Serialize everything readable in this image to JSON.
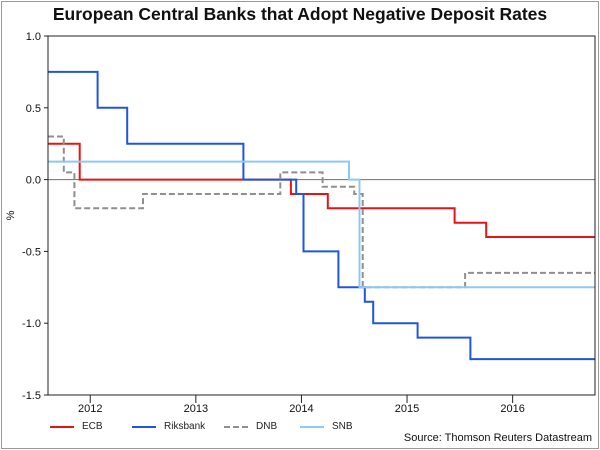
{
  "chart_data": {
    "type": "line",
    "title": "European Central Banks that Adopt Negative Deposit Rates",
    "ylabel": "%",
    "xlabel": "",
    "ylim": [
      -1.5,
      1.0
    ],
    "xlim": [
      2011.6,
      2016.78
    ],
    "yticks": [
      1.0,
      0.5,
      0.0,
      -0.5,
      -1.0,
      -1.5
    ],
    "ytick_labels": [
      "1.0",
      "0.5",
      "0.0",
      "-0.5",
      "-1.0",
      "-1.5"
    ],
    "x_year_boundaries": [
      2012,
      2013,
      2014,
      2015,
      2016
    ],
    "xtick_labels": [
      {
        "label": "2012",
        "x": 2012.0
      },
      {
        "label": "2013",
        "x": 2013.0
      },
      {
        "label": "2014",
        "x": 2014.0
      },
      {
        "label": "2015",
        "x": 2015.0
      },
      {
        "label": "2016",
        "x": 2016.0
      }
    ],
    "zero_line": true,
    "series": [
      {
        "name": "ECB",
        "color": "#e81414",
        "dash": false,
        "x": [
          2011.6,
          2011.9,
          2011.9,
          2013.9,
          2013.9,
          2014.1,
          2014.1,
          2014.25,
          2014.25,
          2015.45,
          2015.45,
          2015.75,
          2015.75,
          2016.78
        ],
        "y": [
          0.25,
          0.25,
          0.0,
          0.0,
          -0.1,
          -0.1,
          -0.1,
          -0.1,
          -0.2,
          -0.2,
          -0.3,
          -0.3,
          -0.4,
          -0.4
        ]
      },
      {
        "name": "Riksbank",
        "color": "#1e56e0",
        "dash": false,
        "x": [
          2011.6,
          2012.07,
          2012.07,
          2012.35,
          2012.35,
          2013.45,
          2013.45,
          2013.95,
          2013.95,
          2014.02,
          2014.02,
          2014.35,
          2014.35,
          2014.6,
          2014.6,
          2014.68,
          2014.68,
          2015.1,
          2015.1,
          2015.6,
          2015.6,
          2016.78
        ],
        "y": [
          0.75,
          0.75,
          0.5,
          0.5,
          0.25,
          0.25,
          0.0,
          0.0,
          -0.1,
          -0.1,
          -0.5,
          -0.5,
          -0.75,
          -0.75,
          -0.85,
          -0.85,
          -1.0,
          -1.0,
          -1.1,
          -1.1,
          -1.25,
          -1.25
        ]
      },
      {
        "name": "DNB",
        "color": "#8f8f8f",
        "dash": true,
        "x": [
          2011.6,
          2011.75,
          2011.75,
          2011.85,
          2011.85,
          2012.5,
          2012.5,
          2013.8,
          2013.8,
          2014.2,
          2014.2,
          2014.5,
          2014.5,
          2014.58,
          2014.58,
          2015.55,
          2015.55,
          2016.78
        ],
        "y": [
          0.3,
          0.3,
          0.05,
          0.05,
          -0.2,
          -0.2,
          -0.1,
          -0.1,
          0.05,
          0.05,
          -0.05,
          -0.05,
          -0.1,
          -0.1,
          -0.75,
          -0.75,
          -0.65,
          -0.65
        ]
      },
      {
        "name": "SNB",
        "color": "#8fc8f2",
        "dash": false,
        "x": [
          2011.6,
          2014.45,
          2014.45,
          2014.55,
          2014.55,
          2016.78
        ],
        "y": [
          0.125,
          0.125,
          0.0,
          0.0,
          -0.75,
          -0.75
        ]
      }
    ]
  },
  "source": "Source: Thomson Reuters Datastream"
}
